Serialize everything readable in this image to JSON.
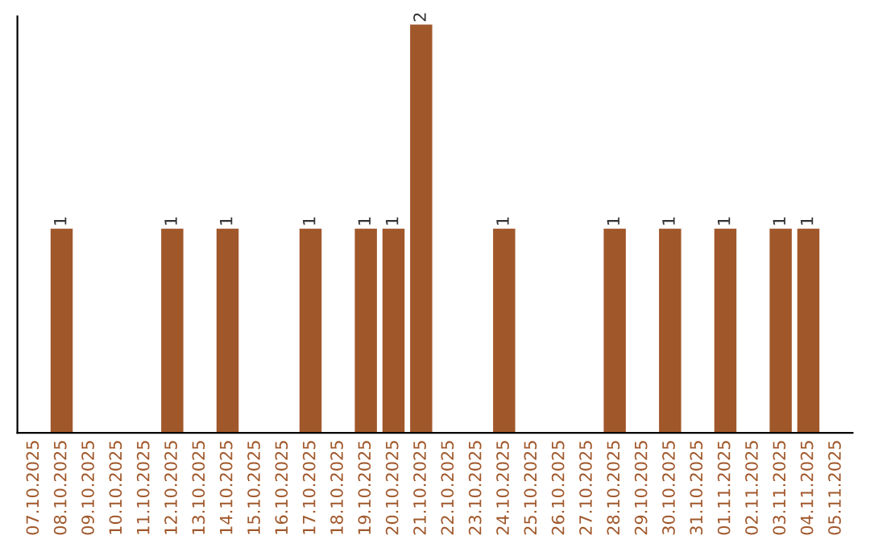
{
  "chart_data": {
    "type": "bar",
    "categories": [
      "07.10.2025",
      "08.10.2025",
      "09.10.2025",
      "10.10.2025",
      "11.10.2025",
      "12.10.2025",
      "13.10.2025",
      "14.10.2025",
      "15.10.2025",
      "16.10.2025",
      "17.10.2025",
      "18.10.2025",
      "19.10.2025",
      "20.10.2025",
      "21.10.2025",
      "22.10.2025",
      "23.10.2025",
      "24.10.2025",
      "25.10.2025",
      "26.10.2025",
      "27.10.2025",
      "28.10.2025",
      "29.10.2025",
      "30.10.2025",
      "31.10.2025",
      "01.11.2025",
      "02.11.2025",
      "03.11.2025",
      "04.11.2025",
      "05.11.2025"
    ],
    "values": [
      0,
      1,
      0,
      0,
      0,
      1,
      0,
      1,
      0,
      0,
      1,
      0,
      1,
      1,
      2,
      0,
      0,
      1,
      0,
      0,
      0,
      1,
      0,
      1,
      0,
      1,
      0,
      1,
      1,
      0
    ],
    "value_labels": [
      null,
      "1",
      null,
      null,
      null,
      "1",
      null,
      "1",
      null,
      null,
      "1",
      null,
      "1",
      "1",
      "2",
      null,
      null,
      "1",
      null,
      null,
      null,
      "1",
      null,
      "1",
      null,
      "1",
      null,
      "1",
      "1",
      null
    ],
    "color": "#a0572a",
    "tick_labels": "x",
    "grid": false,
    "legend": false
  }
}
